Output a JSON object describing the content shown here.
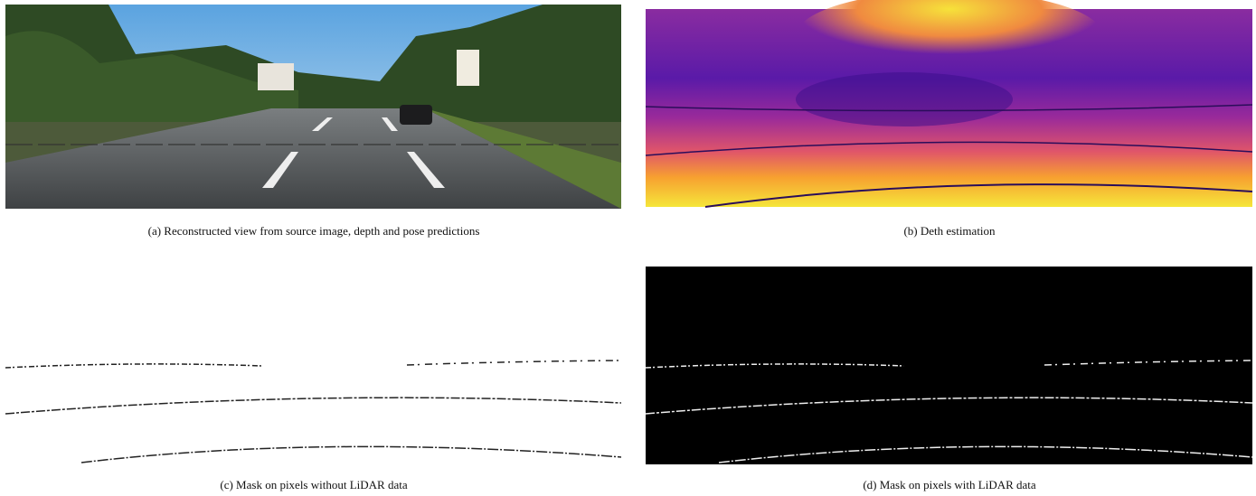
{
  "figure": {
    "panels": [
      {
        "caption": "(a) Reconstructed view from source image, depth and pose predictions"
      },
      {
        "caption": "(b) Deth estimation"
      },
      {
        "caption": "(c) Mask on pixels without LiDAR data"
      },
      {
        "caption": "(d) Mask on pixels with LiDAR data"
      }
    ]
  }
}
